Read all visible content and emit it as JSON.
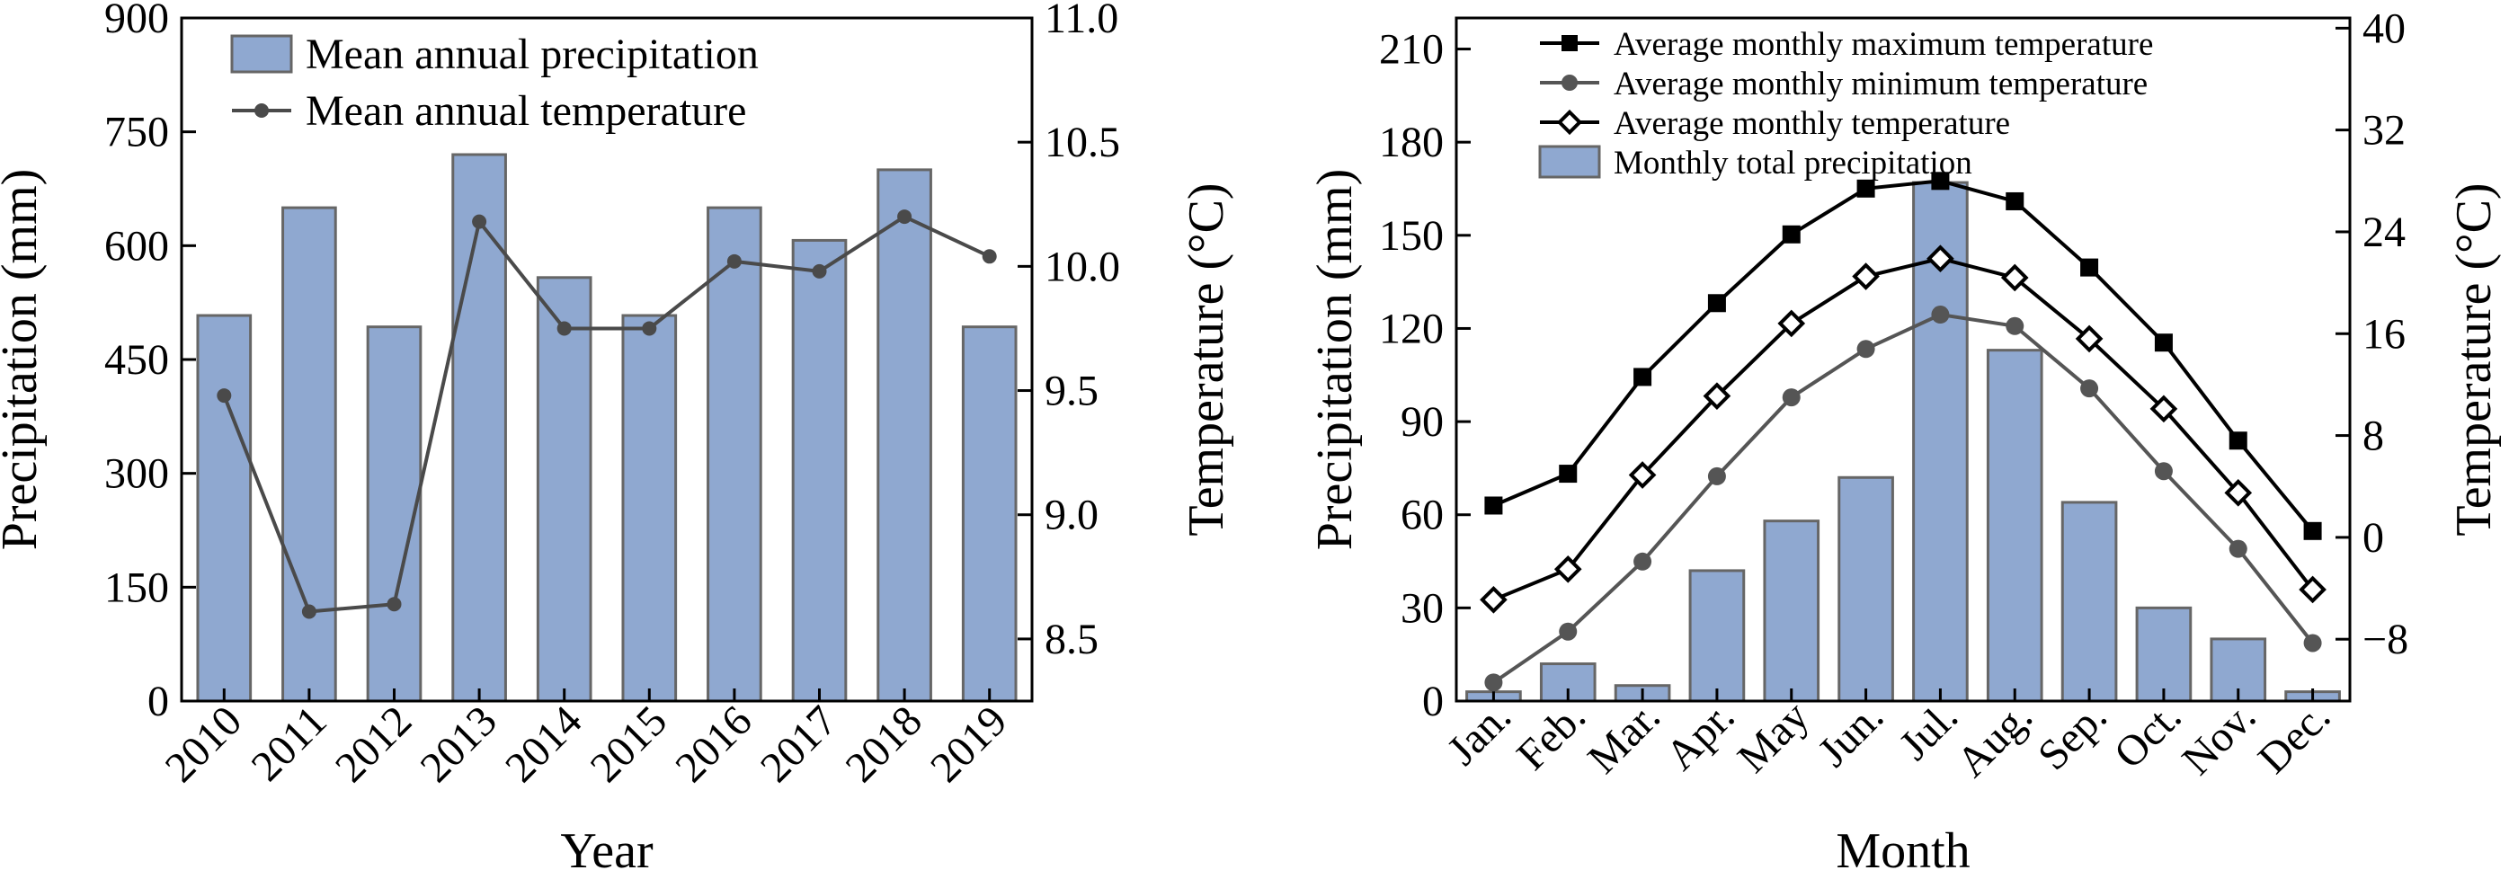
{
  "chart_data": [
    {
      "type": "bar",
      "xlabel": "Year",
      "ylabel": "Precipitation (mm)",
      "y2label": "Temperature (°C)",
      "categories": [
        "2010",
        "2011",
        "2012",
        "2013",
        "2014",
        "2015",
        "2016",
        "2017",
        "2018",
        "2019"
      ],
      "ylim": [
        0,
        900
      ],
      "yticks": [
        "0",
        "150",
        "300",
        "450",
        "600",
        "750",
        "900"
      ],
      "y2lim": [
        8.25,
        11.0
      ],
      "y2ticks": [
        "8.5",
        "9.0",
        "9.5",
        "10.0",
        "10.5",
        "11.0"
      ],
      "series": [
        {
          "name": "Mean annual precipitation",
          "kind": "bar",
          "axis": "left",
          "color": "#8fa8d0",
          "values": [
            508,
            650,
            493,
            720,
            558,
            508,
            650,
            607,
            700,
            493
          ]
        },
        {
          "name": "Mean annual temperature",
          "kind": "line",
          "axis": "right",
          "color": "#4a4a4a",
          "marker": "circle",
          "values": [
            9.48,
            8.61,
            8.64,
            10.18,
            9.75,
            9.75,
            10.02,
            9.98,
            10.2,
            10.04
          ]
        }
      ],
      "legend": "top-left",
      "grid": false
    },
    {
      "type": "bar",
      "xlabel": "Month",
      "ylabel": "Precipitation (mm)",
      "y2label": "Temperature (°C)",
      "categories": [
        "Jan.",
        "Feb.",
        "Mar.",
        "Apr.",
        "May",
        "Jun.",
        "Jul.",
        "Aug.",
        "Sep.",
        "Oct.",
        "Nov.",
        "Dec."
      ],
      "ylim": [
        0,
        220
      ],
      "yticks": [
        "0",
        "30",
        "60",
        "90",
        "120",
        "150",
        "180",
        "210"
      ],
      "y2lim": [
        -12.857,
        40.8
      ],
      "y2ticks": [
        "−8",
        "0",
        "8",
        "16",
        "24",
        "32",
        "40"
      ],
      "series": [
        {
          "name": "Average monthly maximum temperature",
          "kind": "line",
          "axis": "right",
          "color": "#000000",
          "marker": "square",
          "values": [
            2.5,
            5.0,
            12.6,
            18.4,
            23.8,
            27.4,
            28.0,
            26.4,
            21.2,
            15.3,
            7.6,
            0.5
          ]
        },
        {
          "name": "Average monthly minimum temperature",
          "kind": "line",
          "axis": "right",
          "color": "#555555",
          "marker": "circle",
          "values": [
            -11.4,
            -7.4,
            -1.9,
            4.8,
            11.0,
            14.8,
            17.5,
            16.6,
            11.7,
            5.2,
            -0.9,
            -8.3
          ]
        },
        {
          "name": "Average monthly temperature",
          "kind": "line",
          "axis": "right",
          "color": "#000000",
          "marker": "diamond",
          "values": [
            -4.9,
            -2.5,
            4.9,
            11.1,
            16.8,
            20.5,
            21.9,
            20.4,
            15.6,
            10.1,
            3.5,
            -4.1
          ]
        },
        {
          "name": "Monthly total precipitation",
          "kind": "bar",
          "axis": "left",
          "color": "#8fa8d0",
          "values": [
            3,
            12,
            5,
            42,
            58,
            72,
            167,
            113,
            64,
            30,
            20,
            3
          ]
        }
      ],
      "legend": "top-left",
      "grid": false
    }
  ]
}
